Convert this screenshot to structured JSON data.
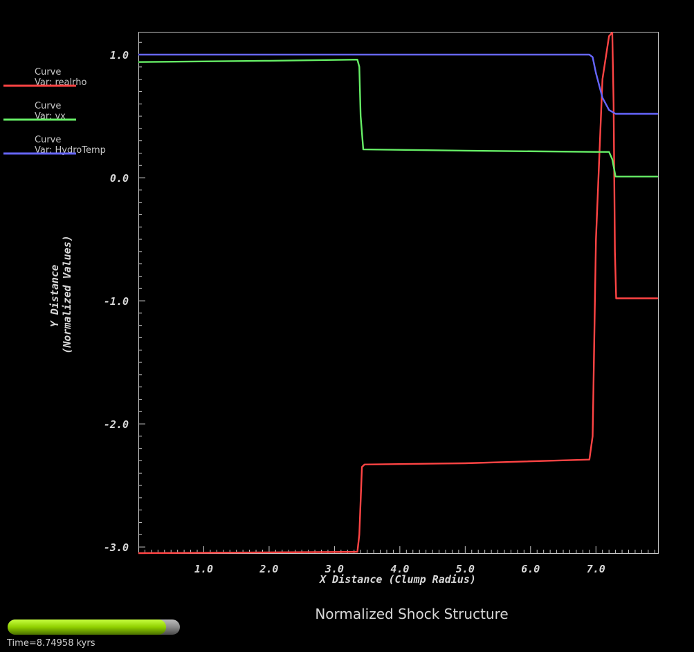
{
  "chart_data": {
    "type": "line",
    "title": "Normalized Shock Structure",
    "xlabel": "X Distance (Clump Radius)",
    "ylabel_line1": "Y Distance",
    "ylabel_line2": "(Normalized Values)",
    "xlim": [
      0.0,
      7.95
    ],
    "ylim": [
      -3.05,
      1.18
    ],
    "x_ticks": [
      "1.0",
      "2.0",
      "3.0",
      "4.0",
      "5.0",
      "6.0",
      "7.0"
    ],
    "x_tick_values": [
      1,
      2,
      3,
      4,
      5,
      6,
      7
    ],
    "y_ticks": [
      "1.0",
      "0.0",
      "-1.0",
      "-2.0",
      "-3.0"
    ],
    "y_tick_values": [
      1,
      0,
      -1,
      -2,
      -3
    ],
    "grid": false,
    "series": [
      {
        "name": "Curve\nVar: realrho",
        "label_line1": "Curve",
        "label_line2": "Var: realrho",
        "color": "#ff4444",
        "x": [
          0.0,
          3.35,
          3.38,
          3.42,
          3.46,
          5.0,
          6.9,
          6.95,
          7.0,
          7.1,
          7.2,
          7.25,
          7.27,
          7.29,
          7.31,
          7.95
        ],
        "y": [
          -3.05,
          -3.04,
          -2.9,
          -2.35,
          -2.33,
          -2.32,
          -2.29,
          -2.1,
          -0.5,
          0.8,
          1.15,
          1.18,
          0.6,
          -0.6,
          -0.98,
          -0.98
        ]
      },
      {
        "name": "Curve\nVar: vx",
        "label_line1": "Curve",
        "label_line2": "Var: vx",
        "color": "#66ee66",
        "x": [
          0.0,
          2.0,
          3.35,
          3.38,
          3.4,
          3.44,
          5.0,
          7.0,
          7.2,
          7.25,
          7.3,
          7.95
        ],
        "y": [
          0.94,
          0.95,
          0.96,
          0.9,
          0.5,
          0.23,
          0.22,
          0.21,
          0.21,
          0.15,
          0.01,
          0.01
        ]
      },
      {
        "name": "Curve\nVar: HydroTemp",
        "label_line1": "Curve",
        "label_line2": "Var: HydroTemp",
        "color": "#6666ff",
        "x": [
          0.0,
          6.9,
          6.95,
          7.0,
          7.1,
          7.2,
          7.3,
          7.95
        ],
        "y": [
          1.0,
          1.0,
          0.98,
          0.85,
          0.65,
          0.55,
          0.52,
          0.52
        ]
      }
    ]
  },
  "footer": {
    "time_text": "Time=8.74958 kyrs",
    "progress": 0.92
  }
}
